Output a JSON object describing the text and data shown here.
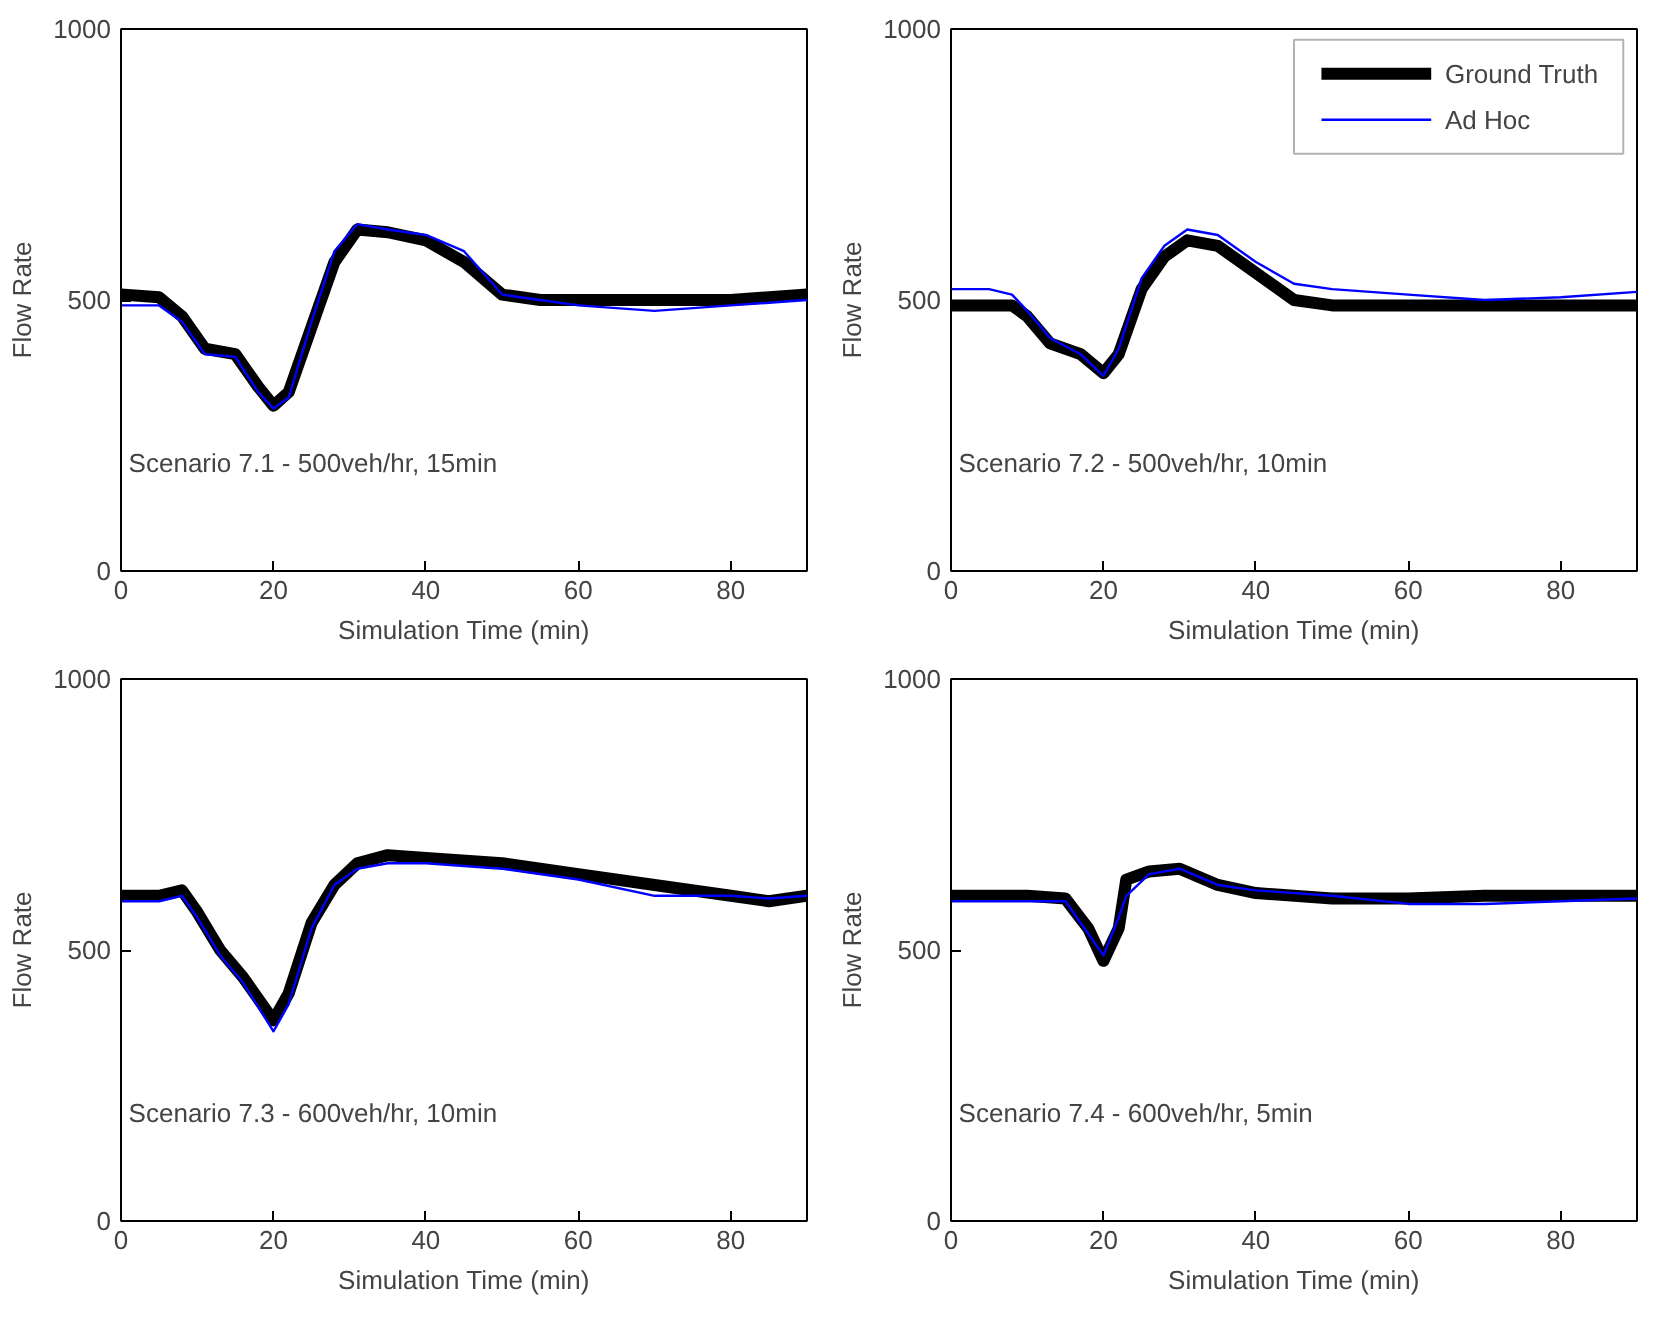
{
  "chart_data": [
    {
      "type": "line",
      "xlabel": "Simulation Time (min)",
      "ylabel": "Flow Rate",
      "xlim": [
        0,
        90
      ],
      "ylim": [
        0,
        1000
      ],
      "xticks": [
        0,
        20,
        40,
        60,
        80
      ],
      "yticks": [
        0,
        500,
        1000
      ],
      "grid": false,
      "legend": false,
      "annotations": [
        "Scenario 7.1 - 500veh/hr, 15min"
      ],
      "series": [
        {
          "color": "#000000",
          "x": [
            0,
            5,
            8,
            11,
            15,
            18,
            20,
            22,
            25,
            28,
            31,
            35,
            40,
            45,
            50,
            55,
            60,
            70,
            80,
            90
          ],
          "values": [
            510,
            505,
            470,
            410,
            400,
            340,
            305,
            330,
            450,
            570,
            630,
            625,
            610,
            570,
            510,
            500,
            500,
            500,
            500,
            510
          ]
        },
        {
          "color": "#0000ff",
          "x": [
            0,
            5,
            8,
            11,
            15,
            18,
            20,
            22,
            25,
            28,
            31,
            35,
            40,
            45,
            50,
            55,
            60,
            70,
            80,
            90
          ],
          "values": [
            490,
            490,
            460,
            400,
            395,
            330,
            300,
            320,
            460,
            590,
            640,
            630,
            620,
            590,
            510,
            500,
            490,
            480,
            490,
            500
          ]
        }
      ]
    },
    {
      "type": "line",
      "xlabel": "Simulation Time (min)",
      "ylabel": "Flow Rate",
      "xlim": [
        0,
        90
      ],
      "ylim": [
        0,
        1000
      ],
      "xticks": [
        0,
        20,
        40,
        60,
        80
      ],
      "yticks": [
        0,
        500,
        1000
      ],
      "grid": false,
      "legend": "top right",
      "annotations": [
        "Scenario 7.2 - 500veh/hr, 10min"
      ],
      "series": [
        {
          "name": "Ground Truth",
          "color": "#000000",
          "x": [
            0,
            5,
            8,
            10,
            13,
            17,
            20,
            22,
            25,
            28,
            31,
            35,
            40,
            45,
            50,
            60,
            70,
            80,
            90
          ],
          "values": [
            490,
            490,
            490,
            470,
            420,
            400,
            365,
            400,
            520,
            580,
            610,
            600,
            550,
            500,
            490,
            490,
            490,
            490,
            490
          ]
        },
        {
          "name": "Ad Hoc",
          "color": "#0000ff",
          "x": [
            0,
            5,
            8,
            10,
            13,
            17,
            20,
            22,
            25,
            28,
            31,
            35,
            40,
            45,
            50,
            60,
            70,
            80,
            90
          ],
          "values": [
            520,
            520,
            510,
            480,
            430,
            400,
            360,
            410,
            540,
            600,
            630,
            620,
            570,
            530,
            520,
            510,
            500,
            505,
            515
          ]
        }
      ]
    },
    {
      "type": "line",
      "xlabel": "Simulation Time (min)",
      "ylabel": "Flow Rate",
      "xlim": [
        0,
        90
      ],
      "ylim": [
        0,
        1000
      ],
      "xticks": [
        0,
        20,
        40,
        60,
        80
      ],
      "yticks": [
        0,
        500,
        1000
      ],
      "grid": false,
      "legend": false,
      "annotations": [
        "Scenario 7.3 - 600veh/hr, 10min"
      ],
      "series": [
        {
          "color": "#000000",
          "x": [
            0,
            5,
            8,
            10,
            13,
            16,
            20,
            22,
            25,
            28,
            31,
            35,
            40,
            50,
            60,
            70,
            80,
            85,
            90
          ],
          "values": [
            600,
            600,
            610,
            570,
            500,
            450,
            370,
            420,
            550,
            620,
            660,
            675,
            670,
            660,
            640,
            620,
            600,
            590,
            600
          ]
        },
        {
          "color": "#0000ff",
          "x": [
            0,
            5,
            8,
            10,
            13,
            16,
            20,
            22,
            25,
            28,
            31,
            35,
            40,
            50,
            60,
            70,
            80,
            85,
            90
          ],
          "values": [
            590,
            590,
            600,
            560,
            490,
            440,
            350,
            400,
            540,
            620,
            650,
            660,
            660,
            650,
            630,
            600,
            600,
            595,
            600
          ]
        }
      ]
    },
    {
      "type": "line",
      "xlabel": "Simulation Time (min)",
      "ylabel": "Flow Rate",
      "xlim": [
        0,
        90
      ],
      "ylim": [
        0,
        1000
      ],
      "xticks": [
        0,
        20,
        40,
        60,
        80
      ],
      "yticks": [
        0,
        500,
        1000
      ],
      "grid": false,
      "legend": false,
      "annotations": [
        "Scenario 7.4 - 600veh/hr, 5min"
      ],
      "series": [
        {
          "color": "#000000",
          "x": [
            0,
            10,
            15,
            18,
            20,
            22,
            23,
            26,
            30,
            35,
            40,
            50,
            60,
            70,
            80,
            90
          ],
          "values": [
            600,
            600,
            595,
            540,
            480,
            540,
            630,
            645,
            650,
            620,
            605,
            595,
            595,
            600,
            600,
            600
          ]
        },
        {
          "color": "#0000ff",
          "x": [
            0,
            10,
            15,
            18,
            20,
            22,
            23,
            26,
            30,
            35,
            40,
            50,
            60,
            70,
            80,
            90
          ],
          "values": [
            590,
            590,
            590,
            530,
            490,
            560,
            600,
            640,
            650,
            620,
            610,
            600,
            585,
            585,
            590,
            595
          ]
        }
      ]
    }
  ]
}
